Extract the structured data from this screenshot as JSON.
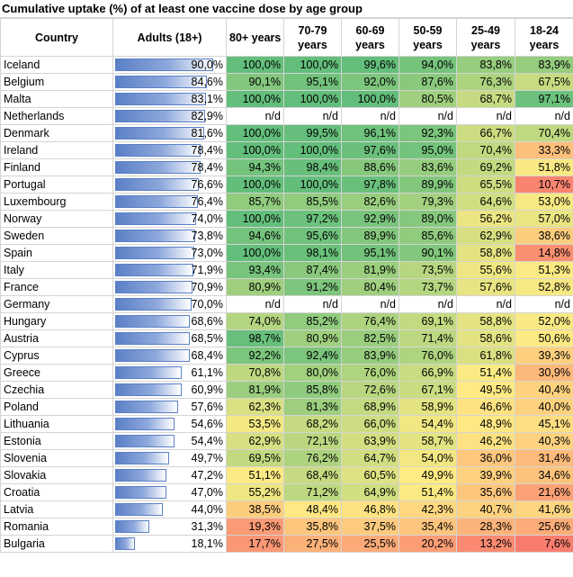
{
  "chart_data": {
    "type": "table",
    "title": "Cumulative uptake (%) of at least one vaccine dose by age group",
    "columns": [
      "Country",
      "Adults (18+)",
      "80+ years",
      "70-79 years",
      "60-69 years",
      "50-59 years",
      "25-49 years",
      "18-24 years"
    ],
    "column_header_lines": [
      [
        "Country"
      ],
      [
        "Adults (18+)"
      ],
      [
        "80+ years"
      ],
      [
        "70-79",
        "years"
      ],
      [
        "60-69",
        "years"
      ],
      [
        "50-59",
        "years"
      ],
      [
        "25-49",
        "years"
      ],
      [
        "18-24",
        "years"
      ]
    ],
    "rows": [
      [
        "Iceland",
        "90,0%",
        "100,0%",
        "100,0%",
        "99,6%",
        "94,0%",
        "83,8%",
        "83,9%"
      ],
      [
        "Belgium",
        "84,6%",
        "90,1%",
        "95,1%",
        "92,0%",
        "87,6%",
        "76,3%",
        "67,5%"
      ],
      [
        "Malta",
        "83,1%",
        "100,0%",
        "100,0%",
        "100,0%",
        "80,5%",
        "68,7%",
        "97,1%"
      ],
      [
        "Netherlands",
        "82,9%",
        "n/d",
        "n/d",
        "n/d",
        "n/d",
        "n/d",
        "n/d"
      ],
      [
        "Denmark",
        "81,6%",
        "100,0%",
        "99,5%",
        "96,1%",
        "92,3%",
        "66,7%",
        "70,4%"
      ],
      [
        "Ireland",
        "78,4%",
        "100,0%",
        "100,0%",
        "97,6%",
        "95,0%",
        "70,4%",
        "33,3%"
      ],
      [
        "Finland",
        "78,4%",
        "94,3%",
        "98,4%",
        "88,6%",
        "83,6%",
        "69,2%",
        "51,8%"
      ],
      [
        "Portugal",
        "76,6%",
        "100,0%",
        "100,0%",
        "97,8%",
        "89,9%",
        "65,5%",
        "10,7%"
      ],
      [
        "Luxembourg",
        "76,4%",
        "85,7%",
        "85,5%",
        "82,6%",
        "79,3%",
        "64,6%",
        "53,0%"
      ],
      [
        "Norway",
        "74,0%",
        "100,0%",
        "97,2%",
        "92,9%",
        "89,0%",
        "56,2%",
        "57,0%"
      ],
      [
        "Sweden",
        "73,8%",
        "94,6%",
        "95,6%",
        "89,9%",
        "85,6%",
        "62,9%",
        "38,6%"
      ],
      [
        "Spain",
        "73,0%",
        "100,0%",
        "98,1%",
        "95,1%",
        "90,1%",
        "58,8%",
        "14,8%"
      ],
      [
        "Italy",
        "71,9%",
        "93,4%",
        "87,4%",
        "81,9%",
        "73,5%",
        "55,6%",
        "51,3%"
      ],
      [
        "France",
        "70,9%",
        "80,9%",
        "91,2%",
        "80,4%",
        "73,7%",
        "57,6%",
        "52,8%"
      ],
      [
        "Germany",
        "70,0%",
        "n/d",
        "n/d",
        "n/d",
        "n/d",
        "n/d",
        "n/d"
      ],
      [
        "Hungary",
        "68,6%",
        "74,0%",
        "85,2%",
        "76,4%",
        "69,1%",
        "58,8%",
        "52,0%"
      ],
      [
        "Austria",
        "68,5%",
        "98,7%",
        "80,9%",
        "82,5%",
        "71,4%",
        "58,6%",
        "50,6%"
      ],
      [
        "Cyprus",
        "68,4%",
        "92,2%",
        "92,4%",
        "83,9%",
        "76,0%",
        "61,8%",
        "39,3%"
      ],
      [
        "Greece",
        "61,1%",
        "70,8%",
        "80,0%",
        "76,0%",
        "66,9%",
        "51,4%",
        "30,9%"
      ],
      [
        "Czechia",
        "60,9%",
        "81,9%",
        "85,8%",
        "72,6%",
        "67,1%",
        "49,5%",
        "40,4%"
      ],
      [
        "Poland",
        "57,6%",
        "62,3%",
        "81,3%",
        "68,9%",
        "58,9%",
        "46,6%",
        "40,0%"
      ],
      [
        "Lithuania",
        "54,6%",
        "53,5%",
        "68,2%",
        "66,0%",
        "54,4%",
        "48,9%",
        "45,1%"
      ],
      [
        "Estonia",
        "54,4%",
        "62,9%",
        "72,1%",
        "63,9%",
        "58,7%",
        "46,2%",
        "40,3%"
      ],
      [
        "Slovenia",
        "49,7%",
        "69,5%",
        "76,2%",
        "64,7%",
        "54,0%",
        "36,0%",
        "31,4%"
      ],
      [
        "Slovakia",
        "47,2%",
        "51,1%",
        "68,4%",
        "60,5%",
        "49,9%",
        "39,9%",
        "34,6%"
      ],
      [
        "Croatia",
        "47,0%",
        "55,2%",
        "71,2%",
        "64,9%",
        "51,4%",
        "35,6%",
        "21,6%"
      ],
      [
        "Latvia",
        "44,0%",
        "38,5%",
        "48,4%",
        "46,8%",
        "42,3%",
        "40,7%",
        "41,6%"
      ],
      [
        "Romania",
        "31,3%",
        "19,3%",
        "35,8%",
        "37,5%",
        "35,4%",
        "28,3%",
        "25,6%"
      ],
      [
        "Bulgaria",
        "18,1%",
        "17,7%",
        "27,5%",
        "25,5%",
        "20,2%",
        "13,2%",
        "7,6%"
      ]
    ],
    "data_bar_column": "Adults (18+)",
    "color_scale": {
      "low": "#f8696b",
      "mid": "#ffeb84",
      "high": "#63be7b",
      "missing": "n/d"
    }
  }
}
